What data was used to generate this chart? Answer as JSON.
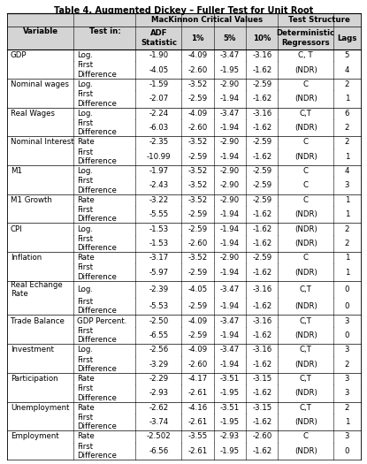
{
  "title": "Table 4. Augmented Dickey – Fuller Test for Unit Root",
  "col_group1_label": "MacKinnon Critical Values",
  "col_group2_label": "Test Structure",
  "col_headers": [
    "Variable",
    "Test in:",
    "ADF\nStatistic",
    "1%",
    "5%",
    "10%",
    "Deterministic\nRegressors",
    "Lags"
  ],
  "rows": [
    [
      "GDP",
      "Log.",
      "-1.90",
      "-4.09",
      "-3.47",
      "-3.16",
      "C, T",
      "5"
    ],
    [
      "",
      "First\nDifference",
      "-4.05",
      "-2.60",
      "-1.95",
      "-1.62",
      "(NDR)",
      "4"
    ],
    [
      "Nominal wages",
      "Log.",
      "-1.59",
      "-3.52",
      "-2.90",
      "-2.59",
      "C",
      "2"
    ],
    [
      "",
      "First\nDifference",
      "-2.07",
      "-2.59",
      "-1.94",
      "-1.62",
      "(NDR)",
      "1"
    ],
    [
      "Real Wages",
      "Log.",
      "-2.24",
      "-4.09",
      "-3.47",
      "-3.16",
      "C,T",
      "6"
    ],
    [
      "",
      "First\nDifference",
      "-6.03",
      "-2.60",
      "-1.94",
      "-1.62",
      "(NDR)",
      "2"
    ],
    [
      "Nominal Interest",
      "Rate",
      "-2.35",
      "-3.52",
      "-2.90",
      "-2.59",
      "C",
      "2"
    ],
    [
      "",
      "First\nDifference",
      "-10.99",
      "-2.59",
      "-1.94",
      "-1.62",
      "(NDR)",
      "1"
    ],
    [
      "M1",
      "Log.",
      "-1.97",
      "-3.52",
      "-2.90",
      "-2.59",
      "C",
      "4"
    ],
    [
      "",
      "First\nDifference",
      "-2.43",
      "-3.52",
      "-2.90",
      "-2.59",
      "C",
      "3"
    ],
    [
      "M1 Growth",
      "Rate",
      "-3.22",
      "-3.52",
      "-2.90",
      "-2.59",
      "C",
      "1"
    ],
    [
      "",
      "First\nDifference",
      "-5.55",
      "-2.59",
      "-1.94",
      "-1.62",
      "(NDR)",
      "1"
    ],
    [
      "CPI",
      "Log.",
      "-1.53",
      "-2.59",
      "-1.94",
      "-1.62",
      "(NDR)",
      "2"
    ],
    [
      "",
      "First\nDifference",
      "-1.53",
      "-2.60",
      "-1.94",
      "-1.62",
      "(NDR)",
      "2"
    ],
    [
      "Inflation",
      "Rate",
      "-3.17",
      "-3.52",
      "-2.90",
      "-2.59",
      "C",
      "1"
    ],
    [
      "",
      "First\nDifference",
      "-5.97",
      "-2.59",
      "-1.94",
      "-1.62",
      "(NDR)",
      "1"
    ],
    [
      "Real Echange\nRate",
      "Log.",
      "-2.39",
      "-4.05",
      "-3.47",
      "-3.16",
      "C,T",
      "0"
    ],
    [
      "",
      "First\nDifference",
      "-5.53",
      "-2.59",
      "-1.94",
      "-1.62",
      "(NDR)",
      "0"
    ],
    [
      "Trade Balance",
      "GDP Percent.",
      "-2.50",
      "-4.09",
      "-3.47",
      "-3.16",
      "C,T",
      "3"
    ],
    [
      "",
      "First\nDifference",
      "-6.55",
      "-2.59",
      "-1.94",
      "-1.62",
      "(NDR)",
      "0"
    ],
    [
      "Investment",
      "Log.",
      "-2.56",
      "-4.09",
      "-3.47",
      "-3.16",
      "C,T",
      "3"
    ],
    [
      "",
      "First\nDifference",
      "-3.29",
      "-2.60",
      "-1.94",
      "-1.62",
      "(NDR)",
      "2"
    ],
    [
      "Participation",
      "Rate",
      "-2.29",
      "-4.17",
      "-3.51",
      "-3.15",
      "C,T",
      "3"
    ],
    [
      "",
      "First\nDifference",
      "-2.93",
      "-2.61",
      "-1.95",
      "-1.62",
      "(NDR)",
      "3"
    ],
    [
      "Unemployment",
      "Rate",
      "-2.62",
      "-4.16",
      "-3.51",
      "-3.15",
      "C,T",
      "2"
    ],
    [
      "",
      "First\nDifference",
      "-3.74",
      "-2.61",
      "-1.95",
      "-1.62",
      "(NDR)",
      "1"
    ],
    [
      "Employment",
      "Rate",
      "-2.502",
      "-3.55",
      "-2.93",
      "-2.60",
      "C",
      "3"
    ],
    [
      "",
      "First\nDifference",
      "-6.56",
      "-2.61",
      "-1.95",
      "-1.62",
      "(NDR)",
      "0"
    ]
  ],
  "group_separators_before": [
    2,
    4,
    6,
    8,
    10,
    12,
    14,
    16,
    18,
    20,
    22,
    24,
    26
  ],
  "background_color": "#ffffff",
  "header_bg": "#d4d4d4",
  "border_color": "#000000",
  "font_size": 6.2,
  "title_font_size": 7.0,
  "col_widths_rel": [
    1.45,
    1.35,
    1.0,
    0.7,
    0.7,
    0.7,
    1.2,
    0.6
  ]
}
